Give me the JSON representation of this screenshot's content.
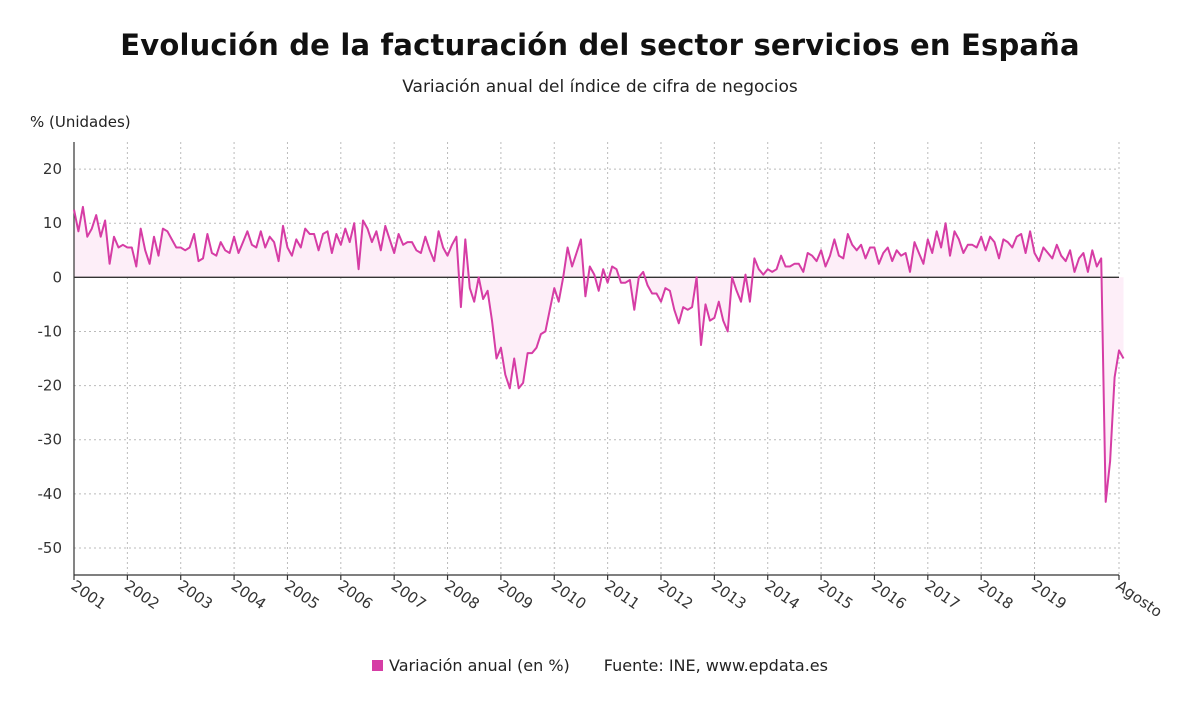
{
  "title": "Evolución de la facturación del sector servicios en España",
  "subtitle": "Variación anual del índice de cifra de negocios",
  "source": "Fuente: INE, www.epdata.es",
  "colors": {
    "series": "#d63da5",
    "fill": "#fdeef8",
    "grid": "#bbbbbb",
    "axis": "#333333"
  },
  "chart_data": {
    "type": "area",
    "title": "Evolución de la facturación del sector servicios en España",
    "subtitle": "Variación anual del índice de cifra de negocios",
    "ylabel": "% (Unidades)",
    "xlabel": "",
    "ylim": [
      -55,
      25
    ],
    "yticks": [
      20,
      10,
      0,
      -10,
      -20,
      -30,
      -40,
      -50
    ],
    "xlim": [
      2001.0,
      2020.583
    ],
    "xticks": [
      {
        "x": 2001,
        "label": "2001"
      },
      {
        "x": 2002,
        "label": "2002"
      },
      {
        "x": 2003,
        "label": "2003"
      },
      {
        "x": 2004,
        "label": "2004"
      },
      {
        "x": 2005,
        "label": "2005"
      },
      {
        "x": 2006,
        "label": "2006"
      },
      {
        "x": 2007,
        "label": "2007"
      },
      {
        "x": 2008,
        "label": "2008"
      },
      {
        "x": 2009,
        "label": "2009"
      },
      {
        "x": 2010,
        "label": "2010"
      },
      {
        "x": 2011,
        "label": "2011"
      },
      {
        "x": 2012,
        "label": "2012"
      },
      {
        "x": 2013,
        "label": "2013"
      },
      {
        "x": 2014,
        "label": "2014"
      },
      {
        "x": 2015,
        "label": "2015"
      },
      {
        "x": 2016,
        "label": "2016"
      },
      {
        "x": 2017,
        "label": "2017"
      },
      {
        "x": 2018,
        "label": "2018"
      },
      {
        "x": 2019,
        "label": "2019"
      },
      {
        "x": 2020.583,
        "label": "Agosto"
      }
    ],
    "grid": true,
    "legend": "bottom-center",
    "series": [
      {
        "name": "Variación anual (en %)",
        "start": "2001-01",
        "frequency": "monthly",
        "values": [
          12.5,
          8.5,
          13.0,
          7.5,
          9.0,
          11.5,
          7.5,
          10.5,
          2.5,
          7.5,
          5.5,
          6.0,
          5.5,
          5.5,
          2.0,
          9.0,
          5.0,
          2.5,
          7.5,
          4.0,
          9.0,
          8.5,
          7.0,
          5.5,
          5.5,
          5.0,
          5.5,
          8.0,
          3.0,
          3.5,
          8.0,
          4.5,
          4.0,
          6.5,
          5.0,
          4.5,
          7.5,
          4.5,
          6.5,
          8.5,
          6.0,
          5.5,
          8.5,
          5.5,
          7.5,
          6.5,
          3.0,
          9.5,
          5.5,
          4.0,
          7.0,
          5.5,
          9.0,
          8.0,
          8.0,
          5.0,
          8.0,
          8.5,
          4.5,
          8.0,
          6.0,
          9.0,
          6.5,
          10.0,
          1.5,
          10.5,
          9.0,
          6.5,
          8.5,
          5.0,
          9.5,
          7.0,
          4.5,
          8.0,
          6.0,
          6.5,
          6.5,
          5.0,
          4.5,
          7.5,
          5.0,
          3.0,
          8.5,
          5.5,
          4.0,
          6.0,
          7.5,
          -5.5,
          7.0,
          -2.0,
          -4.5,
          0.0,
          -4.0,
          -2.5,
          -8.0,
          -15.0,
          -13.0,
          -18.0,
          -20.5,
          -15.0,
          -20.5,
          -19.5,
          -14.0,
          -14.0,
          -13.0,
          -10.5,
          -10.0,
          -6.0,
          -2.0,
          -4.5,
          0.0,
          5.5,
          2.0,
          4.5,
          7.0,
          -3.5,
          2.0,
          0.5,
          -2.5,
          1.5,
          -1.0,
          2.0,
          1.5,
          -1.0,
          -1.0,
          -0.5,
          -6.0,
          0.0,
          1.0,
          -1.5,
          -3.0,
          -3.0,
          -4.5,
          -2.0,
          -2.5,
          -6.0,
          -8.5,
          -5.5,
          -6.0,
          -5.5,
          0.0,
          -12.5,
          -5.0,
          -8.0,
          -7.5,
          -4.5,
          -8.0,
          -10.0,
          0.0,
          -2.5,
          -4.5,
          0.5,
          -4.5,
          3.5,
          1.5,
          0.5,
          1.5,
          1.0,
          1.5,
          4.0,
          2.0,
          2.0,
          2.5,
          2.5,
          1.0,
          4.5,
          4.0,
          3.0,
          5.0,
          2.0,
          4.0,
          7.0,
          4.0,
          3.5,
          8.0,
          6.0,
          5.0,
          6.0,
          3.5,
          5.5,
          5.5,
          2.5,
          4.5,
          5.5,
          3.0,
          5.0,
          4.0,
          4.5,
          1.0,
          6.5,
          4.5,
          2.5,
          7.0,
          4.5,
          8.5,
          5.5,
          10.0,
          4.0,
          8.5,
          7.0,
          4.5,
          6.0,
          6.0,
          5.5,
          7.5,
          5.0,
          7.5,
          6.5,
          3.5,
          7.0,
          6.5,
          5.5,
          7.5,
          8.0,
          4.5,
          8.5,
          4.5,
          3.0,
          5.5,
          4.5,
          3.5,
          6.0,
          4.0,
          3.0,
          5.0,
          1.0,
          3.5,
          4.5,
          1.0,
          5.0,
          2.0,
          3.5,
          -41.5,
          -34.0,
          -18.5,
          -13.5,
          -15.0
        ]
      }
    ]
  }
}
